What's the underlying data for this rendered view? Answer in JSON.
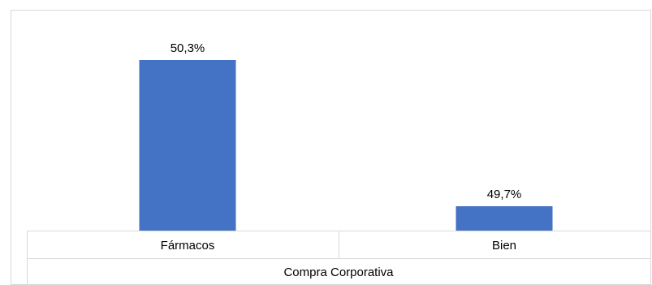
{
  "chart_data": {
    "type": "bar",
    "categories": [
      "Fármacos",
      "Bien"
    ],
    "values": [
      50.3,
      49.7
    ],
    "value_labels": [
      "50,3%",
      "49,7%"
    ],
    "group_label": "Compra Corporativa",
    "title": "",
    "xlabel": "",
    "ylabel": "",
    "ylim": [
      49.6,
      50.4
    ],
    "grid": false,
    "legend": "none",
    "colors": {
      "bar": "#4472c4",
      "text": "#000000",
      "frame": "#d9d9d9"
    }
  }
}
